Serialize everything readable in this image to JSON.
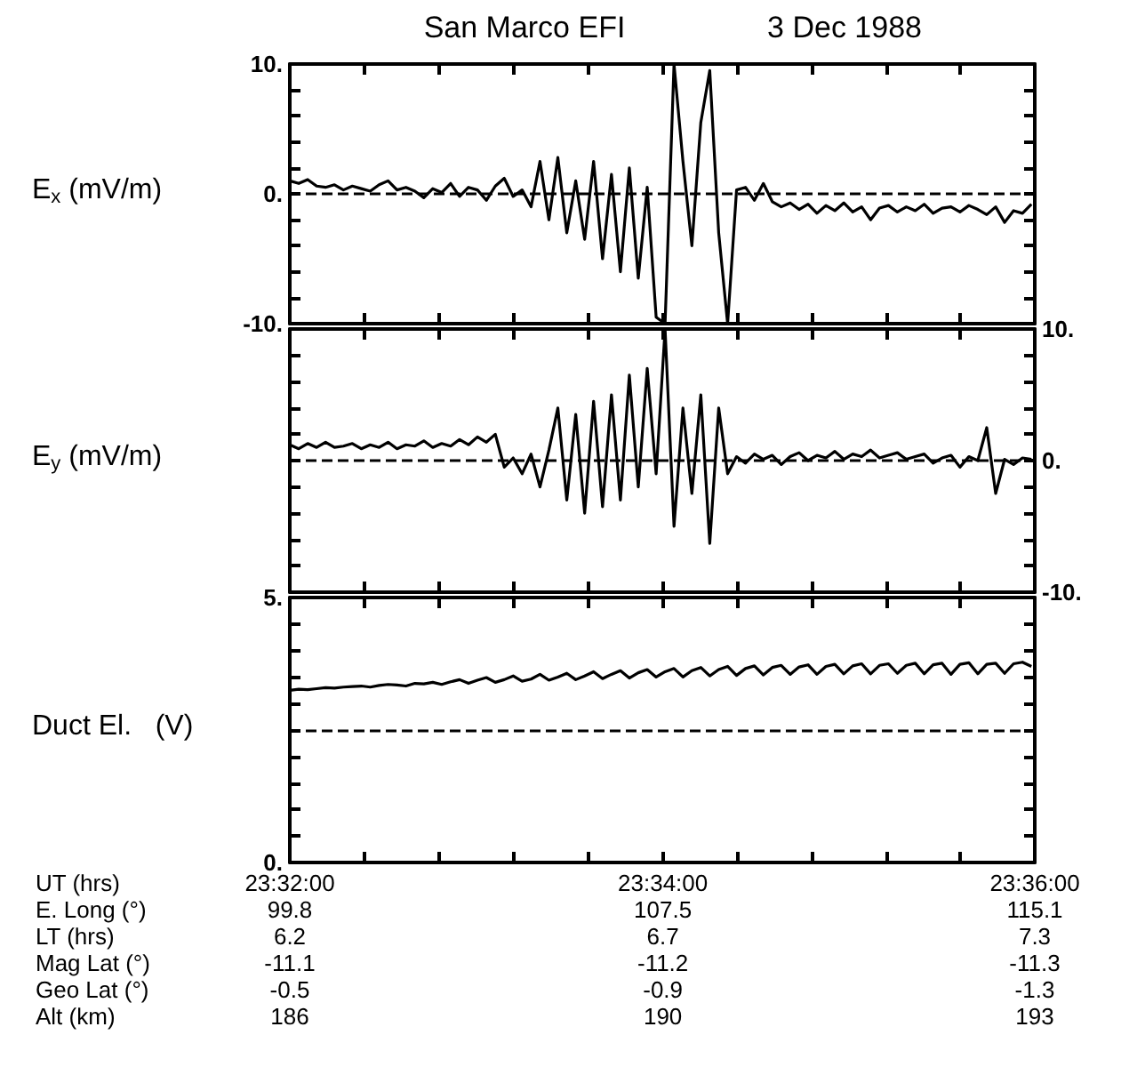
{
  "chart_data": [
    {
      "type": "line",
      "title": "San Marco EFI",
      "subtitle": "3 Dec 1988",
      "ylabel": "E$_{x}$ (mV/m)",
      "marker": "none",
      "tick_labels": "y",
      "xlim": [
        23.5333,
        23.6
      ],
      "xticks": [
        {
          "value": 23.5333,
          "label": null
        },
        {
          "value": 23.54,
          "label": null
        },
        {
          "value": 23.5467,
          "label": null
        },
        {
          "value": 23.5533,
          "label": null
        },
        {
          "value": 23.56,
          "label": null
        },
        {
          "value": 23.5667,
          "label": null
        },
        {
          "value": 23.5733,
          "label": null
        },
        {
          "value": 23.58,
          "label": null
        },
        {
          "value": 23.5867,
          "label": null
        },
        {
          "value": 23.5933,
          "label": null
        },
        {
          "value": 23.6,
          "label": null
        }
      ],
      "ylim": [
        -10,
        10
      ],
      "yticks": [
        {
          "value": -10,
          "label": "-10."
        },
        {
          "value": -8,
          "label": null
        },
        {
          "value": -6,
          "label": null
        },
        {
          "value": -4,
          "label": null
        },
        {
          "value": -2,
          "label": null
        },
        {
          "value": 0,
          "label": "0."
        },
        {
          "value": 2,
          "label": null
        },
        {
          "value": 4,
          "label": null
        },
        {
          "value": 6,
          "label": null
        },
        {
          "value": 8,
          "label": null
        },
        {
          "value": 10,
          "label": "10."
        }
      ],
      "ref_lines": [
        {
          "axis": "y",
          "value": 0,
          "line_style": "dashed"
        }
      ],
      "x": [
        23.5333,
        23.5341,
        23.5349,
        23.5357,
        23.5365,
        23.5373,
        23.5381,
        23.5389,
        23.5397,
        23.5405,
        23.5413,
        23.5421,
        23.5429,
        23.5437,
        23.5445,
        23.5453,
        23.5461,
        23.5469,
        23.5477,
        23.5485,
        23.5493,
        23.5501,
        23.5509,
        23.5517,
        23.5525,
        23.5533,
        23.5541,
        23.5549,
        23.5557,
        23.5565,
        23.5573,
        23.5581,
        23.5589,
        23.5597,
        23.5605,
        23.5613,
        23.5621,
        23.5629,
        23.5637,
        23.5645,
        23.5653,
        23.5661,
        23.5669,
        23.5677,
        23.5685,
        23.5693,
        23.5701,
        23.5709,
        23.5717,
        23.5725,
        23.5733,
        23.5741,
        23.5749,
        23.5757,
        23.5765,
        23.5773,
        23.5781,
        23.5789,
        23.5797,
        23.5805,
        23.5813,
        23.5821,
        23.5829,
        23.5837,
        23.5845,
        23.5853,
        23.5861,
        23.5869,
        23.5877,
        23.5885,
        23.5893,
        23.5901,
        23.5909,
        23.5917,
        23.5925,
        23.5933,
        23.5941,
        23.5949,
        23.5957,
        23.5965,
        23.5973,
        23.5981,
        23.5989,
        23.5997
      ],
      "color": "#000000",
      "values": [
        1.0,
        0.8,
        1.1,
        0.6,
        0.5,
        0.7,
        0.3,
        0.6,
        0.4,
        0.2,
        0.7,
        1.0,
        0.3,
        0.5,
        0.2,
        -0.3,
        0.4,
        0.1,
        0.8,
        -0.2,
        0.5,
        0.3,
        -0.5,
        0.6,
        1.2,
        -0.2,
        0.3,
        -1.0,
        2.5,
        -2.0,
        2.8,
        -3.0,
        1.0,
        -3.5,
        2.5,
        -5.0,
        1.5,
        -6.0,
        2.0,
        -6.5,
        0.5,
        -9.5,
        -10,
        10,
        2.5,
        -4.0,
        5.5,
        9.5,
        -3.0,
        -10,
        0.3,
        0.5,
        -0.5,
        0.8,
        -0.6,
        -1.0,
        -0.7,
        -1.2,
        -0.8,
        -1.5,
        -0.9,
        -1.3,
        -0.7,
        -1.4,
        -1.0,
        -2.0,
        -1.1,
        -0.9,
        -1.4,
        -1.0,
        -1.3,
        -0.8,
        -1.5,
        -1.1,
        -1.0,
        -1.4,
        -0.9,
        -1.2,
        -1.6,
        -1.0,
        -2.2,
        -1.3,
        -1.5,
        -0.8
      ]
    },
    {
      "type": "line",
      "ylabel": "E$_{y}$ (mV/m)",
      "marker": "none",
      "tick_labels": "y",
      "xlim": [
        23.5333,
        23.6
      ],
      "xticks": [
        {
          "value": 23.5333,
          "label": null
        },
        {
          "value": 23.54,
          "label": null
        },
        {
          "value": 23.5467,
          "label": null
        },
        {
          "value": 23.5533,
          "label": null
        },
        {
          "value": 23.56,
          "label": null
        },
        {
          "value": 23.5667,
          "label": null
        },
        {
          "value": 23.5733,
          "label": null
        },
        {
          "value": 23.58,
          "label": null
        },
        {
          "value": 23.5867,
          "label": null
        },
        {
          "value": 23.5933,
          "label": null
        },
        {
          "value": 23.6,
          "label": null
        }
      ],
      "ylim": [
        -10,
        10
      ],
      "yticks": [
        {
          "value": -10,
          "label": "-10."
        },
        {
          "value": -8,
          "label": null
        },
        {
          "value": -6,
          "label": null
        },
        {
          "value": -4,
          "label": null
        },
        {
          "value": -2,
          "label": null
        },
        {
          "value": 0,
          "label": "0."
        },
        {
          "value": 2,
          "label": null
        },
        {
          "value": 4,
          "label": null
        },
        {
          "value": 6,
          "label": null
        },
        {
          "value": 8,
          "label": null
        },
        {
          "value": 10,
          "label": "10."
        }
      ],
      "ref_lines": [
        {
          "axis": "y",
          "value": 0,
          "line_style": "dashed"
        }
      ],
      "x": [
        23.5333,
        23.5341,
        23.5349,
        23.5357,
        23.5365,
        23.5373,
        23.5381,
        23.5389,
        23.5397,
        23.5405,
        23.5413,
        23.5421,
        23.5429,
        23.5437,
        23.5445,
        23.5453,
        23.5461,
        23.5469,
        23.5477,
        23.5485,
        23.5493,
        23.5501,
        23.5509,
        23.5517,
        23.5525,
        23.5533,
        23.5541,
        23.5549,
        23.5557,
        23.5565,
        23.5573,
        23.5581,
        23.5589,
        23.5597,
        23.5605,
        23.5613,
        23.5621,
        23.5629,
        23.5637,
        23.5645,
        23.5653,
        23.5661,
        23.5669,
        23.5677,
        23.5685,
        23.5693,
        23.5701,
        23.5709,
        23.5717,
        23.5725,
        23.5733,
        23.5741,
        23.5749,
        23.5757,
        23.5765,
        23.5773,
        23.5781,
        23.5789,
        23.5797,
        23.5805,
        23.5813,
        23.5821,
        23.5829,
        23.5837,
        23.5845,
        23.5853,
        23.5861,
        23.5869,
        23.5877,
        23.5885,
        23.5893,
        23.5901,
        23.5909,
        23.5917,
        23.5925,
        23.5933,
        23.5941,
        23.5949,
        23.5957,
        23.5965,
        23.5973,
        23.5981,
        23.5989,
        23.5997
      ],
      "series": [
        {
          "color": "#000000",
          "values": [
            1.2,
            0.9,
            1.3,
            1.0,
            1.4,
            1.0,
            1.1,
            1.3,
            0.9,
            1.2,
            1.0,
            1.4,
            0.9,
            1.2,
            1.1,
            1.5,
            1.0,
            1.3,
            1.1,
            1.6,
            1.2,
            1.8,
            1.4,
            2.0,
            -0.5,
            0.2,
            -1.0,
            0.5,
            -2.0,
            0.8,
            4.0,
            -3.0,
            3.5,
            -4.0,
            4.5,
            -3.5,
            5.0,
            -3.0,
            6.5,
            -2.0,
            7.0,
            -1.0,
            10,
            -5.0,
            4.0,
            -2.5,
            5.0,
            -6.3,
            4.0,
            -1.0,
            0.3,
            -0.2,
            0.5,
            0.1,
            0.4,
            -0.3,
            0.3,
            0.6,
            0.0,
            0.4,
            0.2,
            0.7,
            0.1,
            0.5,
            0.3,
            0.8,
            0.2,
            0.4,
            0.6,
            0.1,
            0.3,
            0.5,
            -0.2,
            0.2,
            0.4,
            -0.5,
            0.3,
            0.0,
            2.5,
            -2.5,
            0.1,
            -0.3,
            0.2,
            0.1
          ]
        }
      ]
    },
    {
      "type": "line",
      "ylabel": "Duct El.   (V)",
      "xlabel": "UT (hrs)",
      "marker": "none",
      "annotations": [
        "E. Long (°)",
        "99.8",
        "107.5",
        "115.1",
        "LT (hrs)",
        "6.2",
        "6.7",
        "7.3",
        "Mag Lat (°)",
        "-11.1",
        "-11.2",
        "-11.3",
        "Geo Lat (°)",
        "-0.5",
        "-0.9",
        "-1.3",
        "Alt (km)",
        "186",
        "190",
        "193"
      ],
      "xlim": [
        23.5333,
        23.6
      ],
      "xticks": [
        {
          "value": 23.5333,
          "label": "23:32:00"
        },
        {
          "value": 23.54,
          "label": null
        },
        {
          "value": 23.5467,
          "label": null
        },
        {
          "value": 23.5533,
          "label": null
        },
        {
          "value": 23.56,
          "label": null
        },
        {
          "value": 23.5667,
          "label": "23:34:00"
        },
        {
          "value": 23.5733,
          "label": null
        },
        {
          "value": 23.58,
          "label": null
        },
        {
          "value": 23.5867,
          "label": null
        },
        {
          "value": 23.5933,
          "label": null
        },
        {
          "value": 23.6,
          "label": "23:36:00"
        }
      ],
      "ylim": [
        0,
        5
      ],
      "yticks": [
        {
          "value": 0,
          "label": "0."
        },
        {
          "value": 0.5,
          "label": null
        },
        {
          "value": 1,
          "label": null
        },
        {
          "value": 1.5,
          "label": null
        },
        {
          "value": 2,
          "label": null
        },
        {
          "value": 2.5,
          "label": null
        },
        {
          "value": 3,
          "label": null
        },
        {
          "value": 3.5,
          "label": null
        },
        {
          "value": 4,
          "label": null
        },
        {
          "value": 4.5,
          "label": null
        },
        {
          "value": 5,
          "label": "5."
        }
      ],
      "ref_lines": [
        {
          "axis": "y",
          "value": 2.5,
          "line_style": "dashed"
        }
      ],
      "x": [
        23.5333,
        23.5341,
        23.5349,
        23.5357,
        23.5365,
        23.5373,
        23.5381,
        23.5389,
        23.5397,
        23.5405,
        23.5413,
        23.5421,
        23.5429,
        23.5437,
        23.5445,
        23.5453,
        23.5461,
        23.5469,
        23.5477,
        23.5485,
        23.5493,
        23.5501,
        23.5509,
        23.5517,
        23.5525,
        23.5533,
        23.5541,
        23.5549,
        23.5557,
        23.5565,
        23.5573,
        23.5581,
        23.5589,
        23.5597,
        23.5605,
        23.5613,
        23.5621,
        23.5629,
        23.5637,
        23.5645,
        23.5653,
        23.5661,
        23.5669,
        23.5677,
        23.5685,
        23.5693,
        23.5701,
        23.5709,
        23.5717,
        23.5725,
        23.5733,
        23.5741,
        23.5749,
        23.5757,
        23.5765,
        23.5773,
        23.5781,
        23.5789,
        23.5797,
        23.5805,
        23.5813,
        23.5821,
        23.5829,
        23.5837,
        23.5845,
        23.5853,
        23.5861,
        23.5869,
        23.5877,
        23.5885,
        23.5893,
        23.5901,
        23.5909,
        23.5917,
        23.5925,
        23.5933,
        23.5941,
        23.5949,
        23.5957,
        23.5965,
        23.5973,
        23.5981,
        23.5989,
        23.5997
      ],
      "color": "#000000",
      "values": [
        3.25,
        3.27,
        3.26,
        3.28,
        3.3,
        3.29,
        3.31,
        3.32,
        3.33,
        3.31,
        3.34,
        3.36,
        3.35,
        3.33,
        3.38,
        3.37,
        3.4,
        3.36,
        3.41,
        3.45,
        3.38,
        3.44,
        3.49,
        3.4,
        3.45,
        3.52,
        3.42,
        3.46,
        3.55,
        3.44,
        3.5,
        3.57,
        3.45,
        3.52,
        3.6,
        3.47,
        3.55,
        3.62,
        3.48,
        3.58,
        3.64,
        3.5,
        3.6,
        3.66,
        3.5,
        3.62,
        3.68,
        3.52,
        3.64,
        3.7,
        3.53,
        3.66,
        3.71,
        3.54,
        3.68,
        3.72,
        3.55,
        3.69,
        3.73,
        3.55,
        3.7,
        3.74,
        3.56,
        3.71,
        3.75,
        3.56,
        3.72,
        3.75,
        3.57,
        3.72,
        3.76,
        3.56,
        3.73,
        3.76,
        3.55,
        3.74,
        3.77,
        3.56,
        3.74,
        3.76,
        3.57,
        3.75,
        3.78,
        3.7
      ]
    }
  ]
}
